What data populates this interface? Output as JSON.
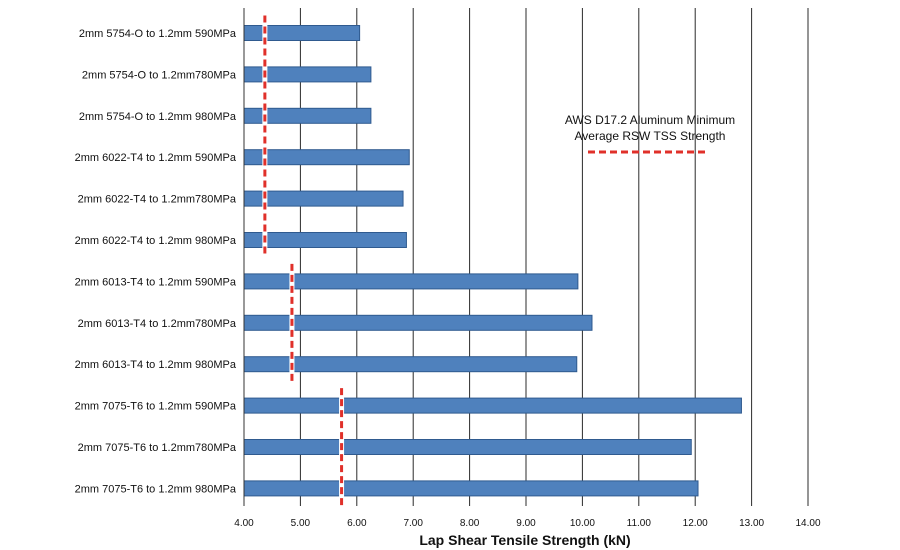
{
  "chart_data": {
    "type": "bar",
    "orientation": "horizontal",
    "categories": [
      "2mm 5754-O to 1.2mm 590MPa",
      "2mm 5754-O to 1.2mm780MPa",
      "2mm 5754-O to 1.2mm 980MPa",
      "2mm 6022-T4 to 1.2mm 590MPa",
      "2mm 6022-T4 to 1.2mm780MPa",
      "2mm 6022-T4 to 1.2mm 980MPa",
      "2mm 6013-T4 to 1.2mm 590MPa",
      "2mm 6013-T4 to 1.2mm780MPa",
      "2mm 6013-T4 to 1.2mm 980MPa",
      "2mm 7075-T6 to 1.2mm 590MPa",
      "2mm 7075-T6 to 1.2mm780MPa",
      "2mm 7075-T6 to 1.2mm 980MPa"
    ],
    "values": [
      6.05,
      6.25,
      6.25,
      6.93,
      6.82,
      6.88,
      9.92,
      10.17,
      9.9,
      12.82,
      11.93,
      12.05
    ],
    "minimums": [
      {
        "from_category": 0,
        "to_category": 5,
        "value": 4.37
      },
      {
        "from_category": 6,
        "to_category": 8,
        "value": 4.85
      },
      {
        "from_category": 9,
        "to_category": 11,
        "value": 5.73
      }
    ],
    "xlabel": "Lap Shear Tensile Strength (kN)",
    "xlim": [
      4.0,
      14.0
    ],
    "xticks": [
      "4.00",
      "5.00",
      "6.00",
      "7.00",
      "8.00",
      "9.00",
      "10.00",
      "11.00",
      "12.00",
      "13.00",
      "14.00"
    ],
    "grid": "vertical",
    "bar_color": "#4f81bd",
    "bar_edge_color": "#2f5a8f",
    "minimum_line_color": "#e0302a",
    "legend": {
      "line1": "AWS D17.2 Aluminum Minimum",
      "line2": "Average RSW TSS Strength",
      "placement": "top-right"
    }
  }
}
